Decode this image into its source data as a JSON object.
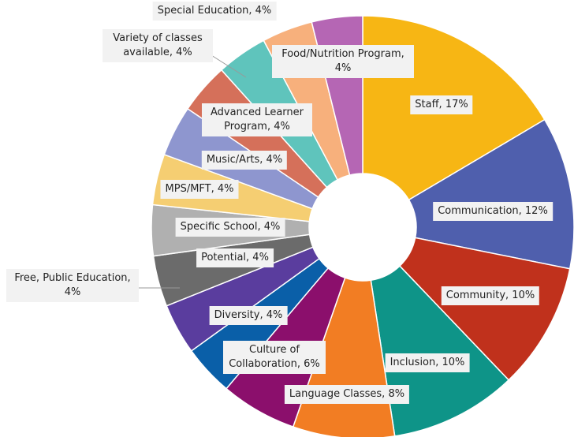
{
  "chart_data": {
    "type": "donut",
    "values": [
      17,
      12,
      10,
      10,
      8,
      6,
      4,
      4,
      4,
      4,
      4,
      4,
      4,
      4,
      4,
      4
    ],
    "value_labels": [
      "Staff, 17%",
      "Communication, 12%",
      "Community, 10%",
      "Inclusion, 10%",
      "Language Classes, 8%",
      "Culture of Collaboration, 6%",
      "Diversity, 4%",
      "Free, Public Education, 4%",
      "Potential, 4%",
      "Specific School, 4%",
      "MPS/MFT, 4%",
      "Music/Arts, 4%",
      "Advanced Learner Program, 4%",
      "Variety of classes available, 4%",
      "Special Education, 4%",
      "Food/Nutrition Program, 4%"
    ],
    "colors": [
      "#f7b614",
      "#4f5fad",
      "#c0311c",
      "#0e9488",
      "#f27d23",
      "#8b0f6c",
      "#0a5fa8",
      "#5a3d9e",
      "#6b6b6b",
      "#b0b0b0",
      "#f5ce72",
      "#8e96cf",
      "#d5705a",
      "#5fc4bc",
      "#f7b07c",
      "#b566b4"
    ]
  }
}
